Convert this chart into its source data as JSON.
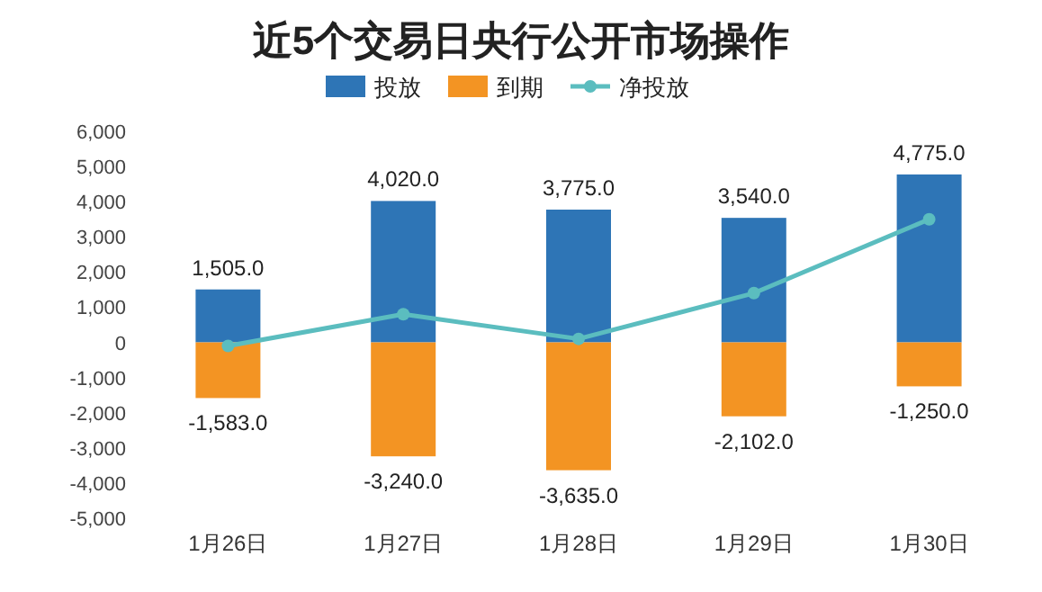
{
  "chart_data": {
    "type": "bar",
    "title": "近5个交易日央行公开市场操作",
    "categories": [
      "1月26日",
      "1月27日",
      "1月28日",
      "1月29日",
      "1月30日"
    ],
    "stacked": true,
    "legend": "top",
    "marker": "circle",
    "grid": false,
    "ylim": [
      -5000,
      6000
    ],
    "yticks": [
      {
        "value": -5000,
        "label": "-5,000"
      },
      {
        "value": -4000,
        "label": "-4,000"
      },
      {
        "value": -3000,
        "label": "-3,000"
      },
      {
        "value": -2000,
        "label": "-2,000"
      },
      {
        "value": -1000,
        "label": "-1,000"
      },
      0,
      {
        "value": 1000,
        "label": "1,000"
      },
      {
        "value": 2000,
        "label": "2,000"
      },
      {
        "value": 3000,
        "label": "3,000"
      },
      {
        "value": 4000,
        "label": "4,000"
      },
      {
        "value": 5000,
        "label": "5,000"
      },
      {
        "value": 6000,
        "label": "6,000"
      }
    ],
    "series": [
      {
        "name": "投放",
        "color": "#2e75b6",
        "values": [
          1505,
          4020,
          3775,
          3540,
          4775
        ],
        "value_labels": [
          "1,505.0",
          "4,020.0",
          "3,775.0",
          "3,540.0",
          "4,775.0"
        ]
      },
      {
        "name": "到期",
        "color": "#f39423",
        "values": [
          -1583,
          -3240,
          -3635,
          -2102,
          -1250
        ],
        "value_labels": [
          "-1,583.0",
          "-3,240.0",
          "-3,635.0",
          "-2,102.0",
          "-1,250.0"
        ]
      },
      {
        "name": "净投放",
        "type": "line",
        "color": "#5bbdbf",
        "values": [
          -100,
          800,
          100,
          1400,
          3500
        ]
      }
    ]
  }
}
